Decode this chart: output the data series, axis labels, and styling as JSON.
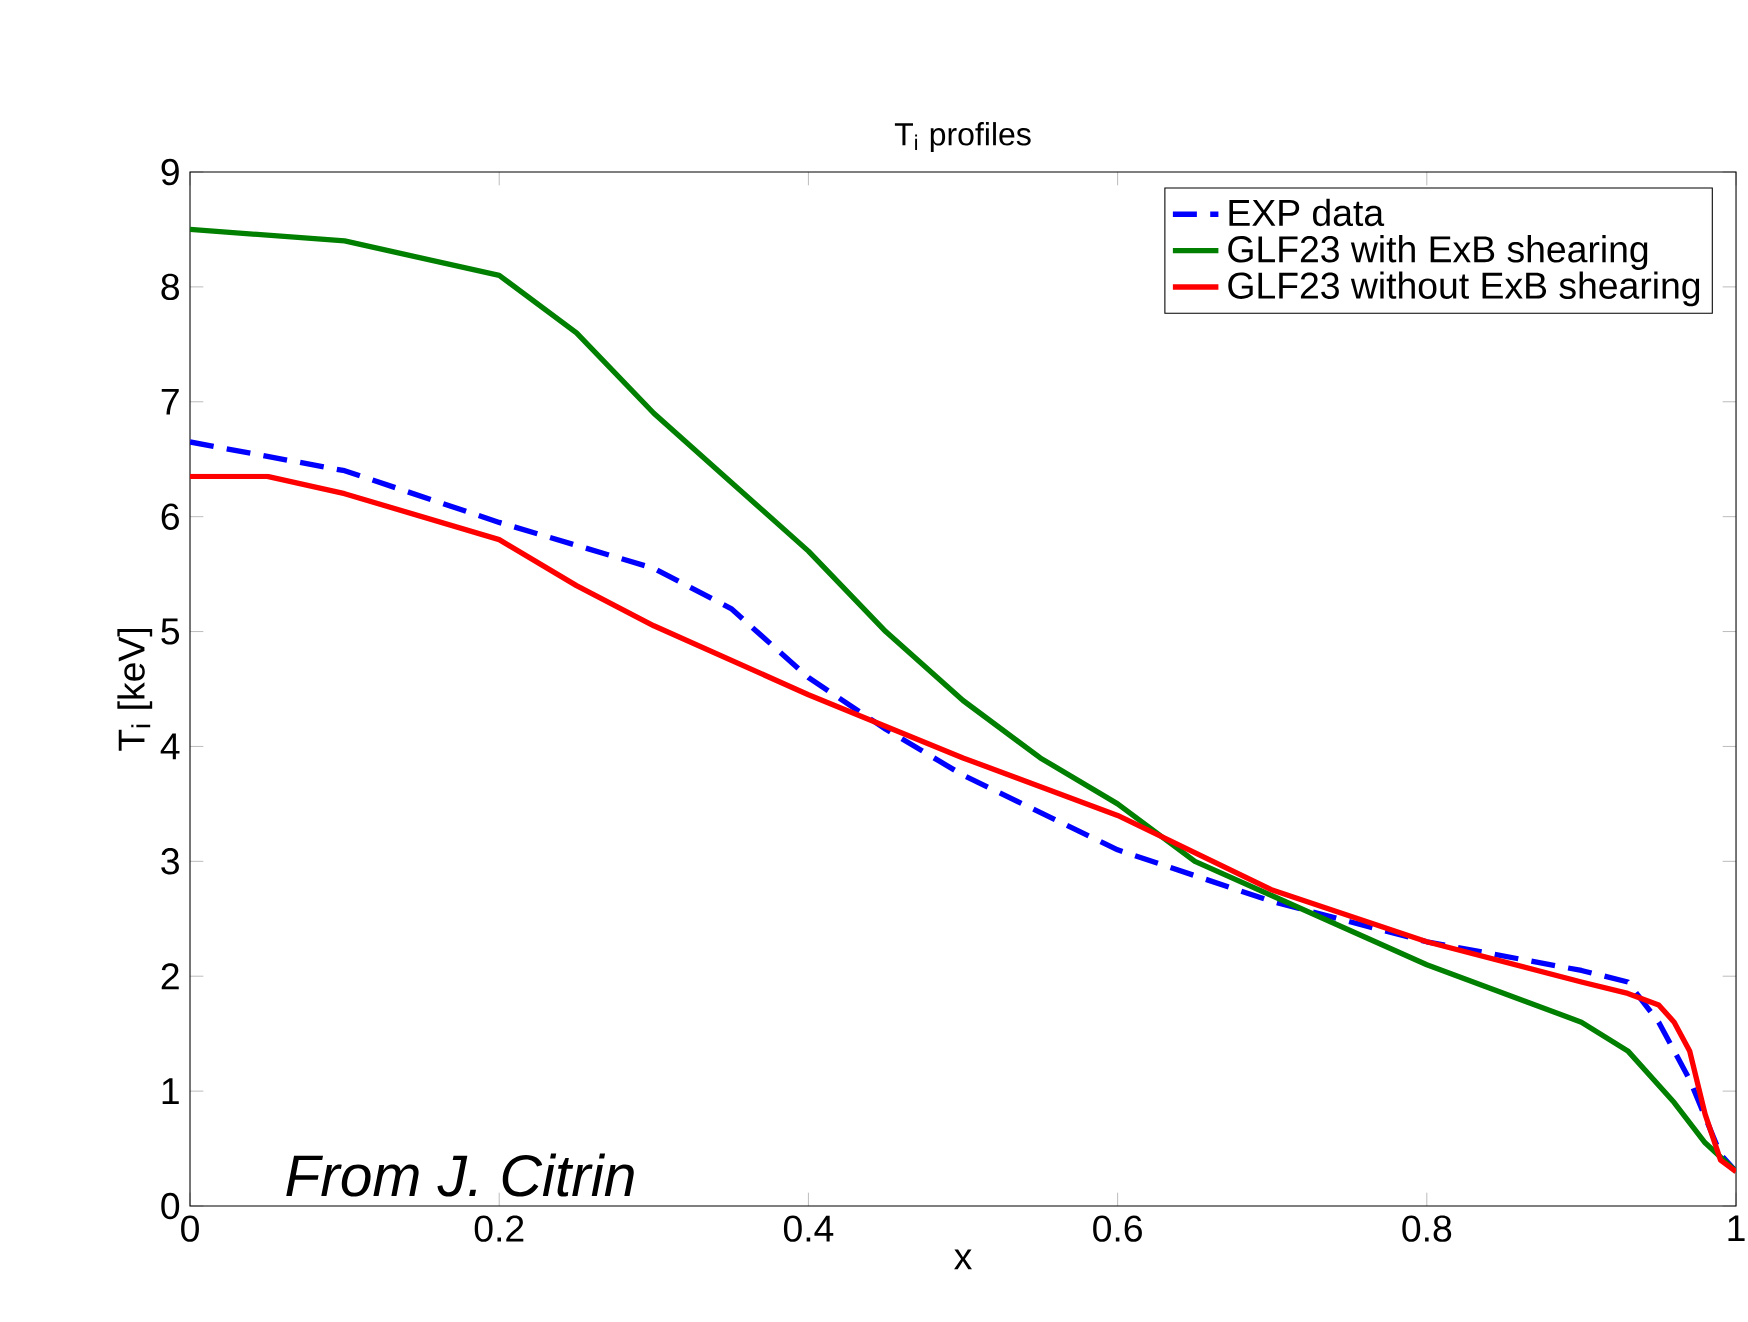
{
  "chart_data": {
    "type": "line",
    "title": "T$_{i}$ profiles",
    "xlabel": "x",
    "ylabel": "T$_{i}$ [keV]",
    "xlim": [
      0,
      1
    ],
    "ylim": [
      0,
      9
    ],
    "xticks": [
      0,
      0.2,
      0.4,
      0.6,
      0.8,
      1
    ],
    "yticks": [
      0,
      1,
      2,
      3,
      4,
      5,
      6,
      7,
      8,
      9
    ],
    "grid": false,
    "legend": "top right",
    "marker": "none",
    "annotations": [
      "*From J. Citrin*"
    ],
    "series": [
      {
        "name": "EXP data",
        "color": "#0000ff",
        "line_style": "dashed",
        "x": [
          0,
          0.1,
          0.2,
          0.3,
          0.35,
          0.4,
          0.45,
          0.5,
          0.6,
          0.7,
          0.8,
          0.9,
          0.93,
          0.95,
          0.97,
          0.99,
          1.0
        ],
        "values": [
          6.65,
          6.4,
          5.95,
          5.55,
          5.2,
          4.6,
          4.15,
          3.75,
          3.1,
          2.65,
          2.3,
          2.05,
          1.95,
          1.6,
          1.1,
          0.45,
          0.3
        ]
      },
      {
        "name": "GLF23 with ExB shearing",
        "color": "#007f00",
        "line_style": "solid",
        "x": [
          0,
          0.1,
          0.2,
          0.25,
          0.3,
          0.35,
          0.4,
          0.45,
          0.5,
          0.55,
          0.6,
          0.65,
          0.7,
          0.75,
          0.8,
          0.85,
          0.9,
          0.93,
          0.96,
          0.98,
          1.0
        ],
        "values": [
          8.5,
          8.4,
          8.1,
          7.6,
          6.9,
          6.3,
          5.7,
          5.0,
          4.4,
          3.9,
          3.5,
          3.0,
          2.7,
          2.4,
          2.1,
          1.85,
          1.6,
          1.35,
          0.9,
          0.55,
          0.3
        ]
      },
      {
        "name": "GLF23 without ExB shearing",
        "color": "#ff0000",
        "line_style": "solid",
        "x": [
          0,
          0.05,
          0.1,
          0.2,
          0.25,
          0.3,
          0.4,
          0.5,
          0.6,
          0.7,
          0.8,
          0.9,
          0.93,
          0.95,
          0.96,
          0.97,
          0.98,
          0.99,
          1.0
        ],
        "values": [
          6.35,
          6.35,
          6.2,
          5.8,
          5.4,
          5.05,
          4.45,
          3.9,
          3.4,
          2.75,
          2.3,
          1.95,
          1.85,
          1.75,
          1.6,
          1.35,
          0.8,
          0.4,
          0.3
        ]
      }
    ]
  }
}
